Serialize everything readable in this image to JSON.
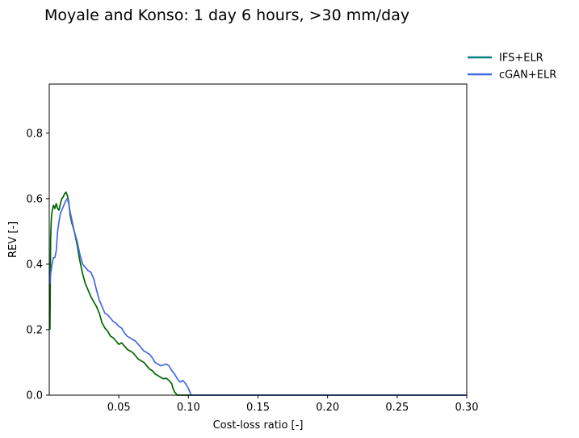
{
  "chart_data": {
    "type": "line",
    "title": "Moyale and Konso: 1 day 6 hours, >30 mm/day",
    "xlabel": "Cost-loss ratio [-]",
    "ylabel": "REV [-]",
    "xlim": [
      0.0,
      0.3
    ],
    "ylim": [
      0.0,
      0.95
    ],
    "xticks": [
      "0.05",
      "0.10",
      "0.15",
      "0.20",
      "0.25",
      "0.30"
    ],
    "yticks": [
      "0.0",
      "0.2",
      "0.4",
      "0.6",
      "0.8"
    ],
    "grid": false,
    "legend_position": "outside top-right",
    "series": [
      {
        "name": "IFS+ELR",
        "color": "#006400",
        "legend_color": "#008080",
        "points": [
          [
            0.0005,
            0.2
          ],
          [
            0.001,
            0.48
          ],
          [
            0.0015,
            0.54
          ],
          [
            0.002,
            0.56
          ],
          [
            0.003,
            0.58
          ],
          [
            0.004,
            0.57
          ],
          [
            0.005,
            0.585
          ],
          [
            0.006,
            0.57
          ],
          [
            0.007,
            0.565
          ],
          [
            0.008,
            0.585
          ],
          [
            0.009,
            0.6
          ],
          [
            0.01,
            0.605
          ],
          [
            0.011,
            0.615
          ],
          [
            0.012,
            0.62
          ],
          [
            0.013,
            0.61
          ],
          [
            0.014,
            0.59
          ],
          [
            0.015,
            0.55
          ],
          [
            0.016,
            0.53
          ],
          [
            0.018,
            0.5
          ],
          [
            0.02,
            0.46
          ],
          [
            0.022,
            0.41
          ],
          [
            0.024,
            0.37
          ],
          [
            0.026,
            0.34
          ],
          [
            0.028,
            0.32
          ],
          [
            0.03,
            0.3
          ],
          [
            0.032,
            0.285
          ],
          [
            0.034,
            0.27
          ],
          [
            0.036,
            0.25
          ],
          [
            0.038,
            0.22
          ],
          [
            0.04,
            0.205
          ],
          [
            0.042,
            0.195
          ],
          [
            0.044,
            0.18
          ],
          [
            0.046,
            0.175
          ],
          [
            0.048,
            0.165
          ],
          [
            0.05,
            0.155
          ],
          [
            0.052,
            0.16
          ],
          [
            0.054,
            0.15
          ],
          [
            0.056,
            0.14
          ],
          [
            0.058,
            0.135
          ],
          [
            0.06,
            0.13
          ],
          [
            0.062,
            0.12
          ],
          [
            0.064,
            0.11
          ],
          [
            0.066,
            0.105
          ],
          [
            0.068,
            0.1
          ],
          [
            0.07,
            0.09
          ],
          [
            0.072,
            0.08
          ],
          [
            0.074,
            0.075
          ],
          [
            0.076,
            0.065
          ],
          [
            0.078,
            0.06
          ],
          [
            0.08,
            0.055
          ],
          [
            0.082,
            0.05
          ],
          [
            0.084,
            0.052
          ],
          [
            0.086,
            0.045
          ],
          [
            0.088,
            0.035
          ],
          [
            0.089,
            0.02
          ],
          [
            0.09,
            0.01
          ],
          [
            0.092,
            0.0
          ],
          [
            0.3,
            0.0
          ]
        ]
      },
      {
        "name": "cGAN+ELR",
        "color": "#4169E1",
        "legend_color": "#4169E1",
        "points": [
          [
            0.0005,
            0.34
          ],
          [
            0.001,
            0.37
          ],
          [
            0.002,
            0.4
          ],
          [
            0.003,
            0.42
          ],
          [
            0.004,
            0.42
          ],
          [
            0.005,
            0.44
          ],
          [
            0.006,
            0.5
          ],
          [
            0.007,
            0.53
          ],
          [
            0.008,
            0.555
          ],
          [
            0.009,
            0.565
          ],
          [
            0.01,
            0.575
          ],
          [
            0.011,
            0.585
          ],
          [
            0.012,
            0.595
          ],
          [
            0.013,
            0.6
          ],
          [
            0.014,
            0.585
          ],
          [
            0.015,
            0.56
          ],
          [
            0.016,
            0.54
          ],
          [
            0.018,
            0.5
          ],
          [
            0.02,
            0.47
          ],
          [
            0.022,
            0.43
          ],
          [
            0.024,
            0.4
          ],
          [
            0.026,
            0.39
          ],
          [
            0.028,
            0.38
          ],
          [
            0.03,
            0.375
          ],
          [
            0.032,
            0.355
          ],
          [
            0.034,
            0.32
          ],
          [
            0.036,
            0.29
          ],
          [
            0.038,
            0.27
          ],
          [
            0.04,
            0.25
          ],
          [
            0.042,
            0.245
          ],
          [
            0.044,
            0.235
          ],
          [
            0.046,
            0.225
          ],
          [
            0.048,
            0.22
          ],
          [
            0.05,
            0.21
          ],
          [
            0.052,
            0.205
          ],
          [
            0.054,
            0.19
          ],
          [
            0.056,
            0.18
          ],
          [
            0.058,
            0.175
          ],
          [
            0.06,
            0.17
          ],
          [
            0.062,
            0.165
          ],
          [
            0.064,
            0.155
          ],
          [
            0.066,
            0.145
          ],
          [
            0.068,
            0.135
          ],
          [
            0.07,
            0.13
          ],
          [
            0.072,
            0.125
          ],
          [
            0.074,
            0.115
          ],
          [
            0.076,
            0.1
          ],
          [
            0.078,
            0.095
          ],
          [
            0.08,
            0.09
          ],
          [
            0.082,
            0.092
          ],
          [
            0.084,
            0.095
          ],
          [
            0.086,
            0.09
          ],
          [
            0.088,
            0.075
          ],
          [
            0.09,
            0.065
          ],
          [
            0.092,
            0.05
          ],
          [
            0.094,
            0.04
          ],
          [
            0.096,
            0.045
          ],
          [
            0.098,
            0.035
          ],
          [
            0.1,
            0.02
          ],
          [
            0.102,
            0.0
          ],
          [
            0.3,
            0.0
          ]
        ]
      }
    ]
  }
}
